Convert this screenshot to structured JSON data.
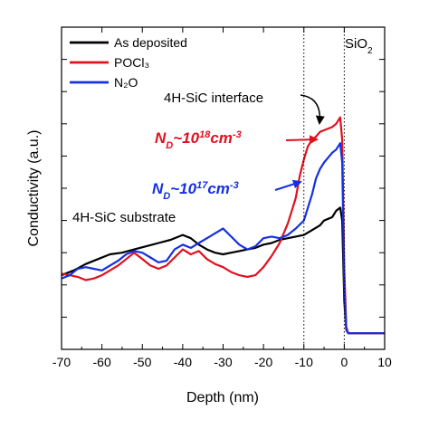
{
  "chart_data": {
    "type": "line",
    "title": "",
    "xlabel": "Depth (nm)",
    "ylabel": "Conductivity (a.u.)",
    "xlim": [
      -70,
      10
    ],
    "ylim": [
      0,
      10
    ],
    "x_ticks": [
      -70,
      -60,
      -50,
      -40,
      -30,
      -20,
      -10,
      0,
      10
    ],
    "grid": false,
    "legend_position": "top-left",
    "series": [
      {
        "name": "As deposited",
        "color": "#000000",
        "points": [
          [
            -70,
            2.3
          ],
          [
            -67,
            2.45
          ],
          [
            -64,
            2.65
          ],
          [
            -61,
            2.8
          ],
          [
            -58,
            2.95
          ],
          [
            -55,
            3.0
          ],
          [
            -52,
            3.1
          ],
          [
            -49,
            3.2
          ],
          [
            -46,
            3.3
          ],
          [
            -43,
            3.4
          ],
          [
            -40,
            3.55
          ],
          [
            -38,
            3.45
          ],
          [
            -36,
            3.25
          ],
          [
            -34,
            3.1
          ],
          [
            -32,
            3.0
          ],
          [
            -30,
            2.95
          ],
          [
            -28,
            3.0
          ],
          [
            -26,
            3.05
          ],
          [
            -24,
            3.1
          ],
          [
            -22,
            3.15
          ],
          [
            -20,
            3.25
          ],
          [
            -18,
            3.3
          ],
          [
            -16,
            3.4
          ],
          [
            -14,
            3.45
          ],
          [
            -12,
            3.5
          ],
          [
            -10,
            3.55
          ],
          [
            -8,
            3.7
          ],
          [
            -6,
            3.85
          ],
          [
            -5,
            4.0
          ],
          [
            -4,
            4.05
          ],
          [
            -3,
            4.1
          ],
          [
            -2,
            4.3
          ],
          [
            -1,
            4.4
          ],
          [
            -0.5,
            4.0
          ],
          [
            0,
            1.5
          ],
          [
            0.5,
            0.6
          ],
          [
            1,
            0.5
          ],
          [
            5,
            0.5
          ],
          [
            10,
            0.5
          ]
        ]
      },
      {
        "name": "POCl₃",
        "color": "#e0101e",
        "points": [
          [
            -70,
            2.35
          ],
          [
            -68,
            2.3
          ],
          [
            -66,
            2.25
          ],
          [
            -64,
            2.15
          ],
          [
            -62,
            2.2
          ],
          [
            -60,
            2.3
          ],
          [
            -58,
            2.45
          ],
          [
            -56,
            2.6
          ],
          [
            -54,
            2.8
          ],
          [
            -52,
            3.0
          ],
          [
            -50,
            2.8
          ],
          [
            -48,
            2.6
          ],
          [
            -46,
            2.5
          ],
          [
            -44,
            2.6
          ],
          [
            -42,
            2.85
          ],
          [
            -40,
            3.1
          ],
          [
            -38,
            2.95
          ],
          [
            -36,
            3.05
          ],
          [
            -34,
            2.8
          ],
          [
            -32,
            2.65
          ],
          [
            -30,
            2.55
          ],
          [
            -28,
            2.4
          ],
          [
            -26,
            2.3
          ],
          [
            -24,
            2.25
          ],
          [
            -22,
            2.3
          ],
          [
            -20,
            2.55
          ],
          [
            -18,
            2.9
          ],
          [
            -16,
            3.3
          ],
          [
            -14,
            3.9
          ],
          [
            -13,
            4.3
          ],
          [
            -12,
            4.7
          ],
          [
            -11,
            5.4
          ],
          [
            -10,
            5.9
          ],
          [
            -9,
            6.3
          ],
          [
            -8,
            6.5
          ],
          [
            -7,
            6.6
          ],
          [
            -6,
            6.75
          ],
          [
            -5,
            6.8
          ],
          [
            -4,
            6.85
          ],
          [
            -3,
            6.9
          ],
          [
            -2,
            7.0
          ],
          [
            -1,
            7.2
          ],
          [
            -0.5,
            6.5
          ],
          [
            0,
            2.5
          ],
          [
            0.5,
            0.7
          ],
          [
            1,
            0.5
          ],
          [
            5,
            0.5
          ],
          [
            10,
            0.5
          ]
        ]
      },
      {
        "name": "N₂O",
        "color": "#1530e0",
        "points": [
          [
            -70,
            2.2
          ],
          [
            -68,
            2.3
          ],
          [
            -66,
            2.5
          ],
          [
            -64,
            2.55
          ],
          [
            -62,
            2.5
          ],
          [
            -60,
            2.45
          ],
          [
            -58,
            2.6
          ],
          [
            -56,
            2.75
          ],
          [
            -54,
            2.95
          ],
          [
            -52,
            3.05
          ],
          [
            -50,
            3.0
          ],
          [
            -48,
            2.85
          ],
          [
            -46,
            2.7
          ],
          [
            -44,
            2.75
          ],
          [
            -42,
            3.1
          ],
          [
            -40,
            3.25
          ],
          [
            -38,
            3.15
          ],
          [
            -36,
            3.3
          ],
          [
            -34,
            3.45
          ],
          [
            -32,
            3.6
          ],
          [
            -30,
            3.75
          ],
          [
            -28,
            3.5
          ],
          [
            -26,
            3.25
          ],
          [
            -24,
            3.1
          ],
          [
            -22,
            3.2
          ],
          [
            -20,
            3.45
          ],
          [
            -18,
            3.5
          ],
          [
            -16,
            3.45
          ],
          [
            -14,
            3.55
          ],
          [
            -12,
            3.75
          ],
          [
            -10,
            4.0
          ],
          [
            -9,
            4.4
          ],
          [
            -8,
            4.8
          ],
          [
            -7,
            5.3
          ],
          [
            -6,
            5.6
          ],
          [
            -5,
            5.8
          ],
          [
            -4,
            5.95
          ],
          [
            -3,
            6.1
          ],
          [
            -2,
            6.2
          ],
          [
            -1,
            6.4
          ],
          [
            -0.5,
            5.8
          ],
          [
            0,
            2.0
          ],
          [
            0.5,
            0.6
          ],
          [
            1,
            0.5
          ],
          [
            5,
            0.5
          ],
          [
            10,
            0.5
          ]
        ]
      }
    ],
    "vlines": [
      {
        "x": -10,
        "style": "dotted"
      },
      {
        "x": 0,
        "style": "dotted"
      }
    ],
    "annotations": {
      "sio2": "SiO₂",
      "interface": "4H-SiC interface",
      "substrate": "4H-SiC substrate",
      "nd_red": "N_D~10^18cm^-3",
      "nd_blue": "N_D~10^17cm^-3"
    }
  }
}
